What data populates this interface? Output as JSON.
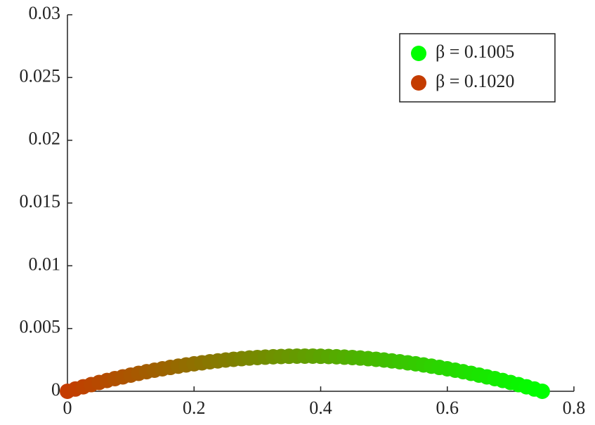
{
  "chart_data": {
    "type": "scatter",
    "x": [
      0,
      0.0125,
      0.025,
      0.0375,
      0.05,
      0.0625,
      0.075,
      0.0875,
      0.1,
      0.1125,
      0.125,
      0.1375,
      0.15,
      0.1625,
      0.175,
      0.1875,
      0.2,
      0.2125,
      0.225,
      0.2375,
      0.25,
      0.2625,
      0.275,
      0.2875,
      0.3,
      0.3125,
      0.325,
      0.3375,
      0.35,
      0.3625,
      0.375,
      0.3875,
      0.4,
      0.4125,
      0.425,
      0.4375,
      0.45,
      0.4625,
      0.475,
      0.4875,
      0.5,
      0.5125,
      0.525,
      0.5375,
      0.55,
      0.5625,
      0.575,
      0.5875,
      0.6,
      0.6125,
      0.625,
      0.6375,
      0.65,
      0.6625,
      0.675,
      0.6875,
      0.7,
      0.7125,
      0.725,
      0.7375,
      0.75
    ],
    "y": [
      0,
      0.00018,
      0.00036,
      0.00053,
      0.0007,
      0.00086,
      0.00101,
      0.00115,
      0.00129,
      0.00143,
      0.00156,
      0.00168,
      0.00179,
      0.0019,
      0.002,
      0.0021,
      0.00219,
      0.00227,
      0.00235,
      0.00242,
      0.00249,
      0.00255,
      0.0026,
      0.00265,
      0.00269,
      0.00272,
      0.00275,
      0.00277,
      0.00279,
      0.0028,
      0.0028,
      0.0028,
      0.00279,
      0.00277,
      0.00275,
      0.00272,
      0.00269,
      0.00265,
      0.0026,
      0.00255,
      0.00249,
      0.00242,
      0.00235,
      0.00227,
      0.00219,
      0.0021,
      0.002,
      0.0019,
      0.00179,
      0.00168,
      0.00156,
      0.00143,
      0.00129,
      0.00115,
      0.00101,
      0.00086,
      0.0007,
      0.00053,
      0.00036,
      0.00018,
      0
    ],
    "series": [
      {
        "name": "β = 0.1005",
        "color": "#00ff00"
      },
      {
        "name": "β = 0.1020",
        "color": "#c43c00"
      }
    ],
    "xlim": [
      0,
      0.8
    ],
    "xticks": [
      0,
      0.2,
      0.4,
      0.6,
      0.8
    ],
    "ylim": [
      0,
      0.03
    ],
    "yticks": [
      0,
      0.005,
      0.01,
      0.015,
      0.02,
      0.025,
      0.03
    ],
    "legend": "upper right",
    "grid": false
  }
}
